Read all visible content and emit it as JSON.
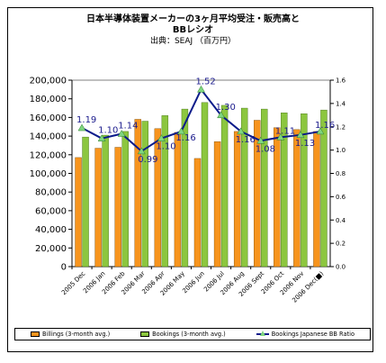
{
  "title_line1": "日本半導体装置メーカーの3ヶ月平均受注・販売高と",
  "title_line2": "BBレシオ",
  "title_line3": "出典：SEAJ （百万円）",
  "colors": {
    "billings": "#f7941d",
    "bookings": "#8cc63f",
    "bb_line": "#0a1a8a",
    "bb_marker": "#7fd67f"
  },
  "chart_data": {
    "type": "bar",
    "categories": [
      "2005 Dec",
      "2006 Jan",
      "2006 Feb",
      "2006 Mar",
      "2006 Apr",
      "2006 May",
      "2006 Jun",
      "2006 Jul",
      "2006 Aug",
      "2006 Sept",
      "2006 Oct",
      "2006 Nov",
      "2006 Dec(■)"
    ],
    "series": [
      {
        "name": "Billings (3-month avg.)",
        "values": [
          117000,
          127000,
          128000,
          158000,
          148000,
          144000,
          116000,
          134000,
          145000,
          157000,
          149000,
          147000,
          145000
        ]
      },
      {
        "name": "Bookings (3-month avg.)",
        "values": [
          139000,
          141000,
          145000,
          156000,
          162000,
          169000,
          176000,
          173000,
          170000,
          169000,
          165000,
          164000,
          168000
        ]
      },
      {
        "name": "Bookings Japanese BB Ratio",
        "type": "line",
        "axis": "right",
        "values": [
          1.19,
          1.1,
          1.14,
          0.99,
          1.1,
          1.16,
          1.52,
          1.3,
          1.16,
          1.08,
          1.11,
          1.13,
          1.16
        ],
        "labels": [
          "1.19",
          "1.10",
          "1.14",
          "0.99",
          "1.10",
          "1.16",
          "1.52",
          "1.30",
          "1.16",
          "1.08",
          "1.11",
          "1.13",
          "1.16"
        ]
      }
    ],
    "yaxis_left": {
      "ylim": [
        0,
        200000
      ],
      "ticks": [
        "0",
        "20,000",
        "40,000",
        "60,000",
        "80,000",
        "100,000",
        "120,000",
        "140,000",
        "160,000",
        "180,000",
        "200,000"
      ]
    },
    "yaxis_right": {
      "ylim": [
        0,
        1.6
      ],
      "ticks": [
        "0.0",
        "0.2",
        "0.4",
        "0.6",
        "0.8",
        "1.0",
        "1.2",
        "1.4",
        "1.6"
      ]
    },
    "grid": false,
    "legend": "bottom"
  }
}
